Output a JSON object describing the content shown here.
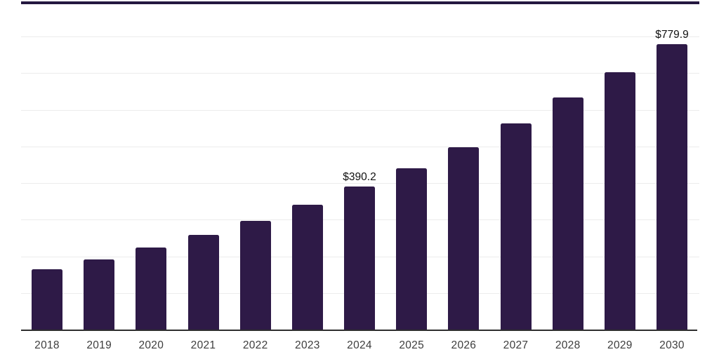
{
  "chart_data": {
    "type": "bar",
    "categories": [
      "2018",
      "2019",
      "2020",
      "2021",
      "2022",
      "2023",
      "2024",
      "2025",
      "2026",
      "2027",
      "2028",
      "2029",
      "2030"
    ],
    "values": [
      165.6,
      192.2,
      224.6,
      258.9,
      296.9,
      340.7,
      390.2,
      439.7,
      498.7,
      563.4,
      633.8,
      702.4,
      779.9
    ],
    "labeled_points": [
      {
        "category": "2024",
        "label": "$390.2"
      },
      {
        "category": "2030",
        "label": "$779.9"
      }
    ],
    "title": "",
    "xlabel": "",
    "ylabel": "",
    "ylim": [
      0,
      900
    ],
    "gridline_step": 100,
    "grid": true,
    "legend_position": "none"
  },
  "colors": {
    "bar": "#2e1a47",
    "top_border": "#241840",
    "axis_line": "#2e2e2e",
    "gridline": "#ececec",
    "tick_label": "#3d3d3d",
    "data_label": "#111111",
    "background": "#ffffff"
  }
}
